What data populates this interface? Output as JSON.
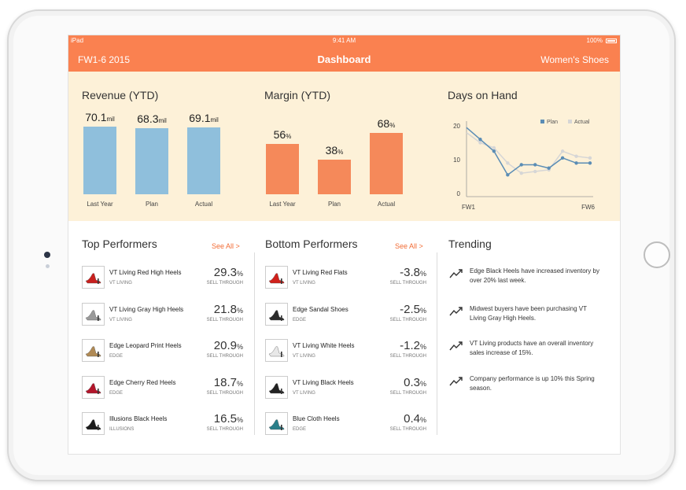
{
  "status": {
    "carrier": "iPad",
    "time": "9:41 AM",
    "battery": "100%"
  },
  "header": {
    "left": "FW1-6 2015",
    "title": "Dashboard",
    "right": "Women's Shoes"
  },
  "revenue": {
    "title": "Revenue (YTD)",
    "bars": [
      {
        "value": "70.1",
        "unit": "mil",
        "label": "Last Year",
        "amount": 70.1
      },
      {
        "value": "68.3",
        "unit": "mil",
        "label": "Plan",
        "amount": 68.3
      },
      {
        "value": "69.1",
        "unit": "mil",
        "label": "Actual",
        "amount": 69.1
      }
    ]
  },
  "margin": {
    "title": "Margin (YTD)",
    "bars": [
      {
        "value": "56",
        "unit": "%",
        "label": "Last Year",
        "amount": 56
      },
      {
        "value": "38",
        "unit": "%",
        "label": "Plan",
        "amount": 38
      },
      {
        "value": "68",
        "unit": "%",
        "label": "Actual",
        "amount": 68
      }
    ]
  },
  "days_on_hand": {
    "title": "Days on Hand",
    "legend": [
      "Plan",
      "Actual"
    ],
    "y_ticks": [
      "20",
      "10",
      "0"
    ],
    "x_start": "FW1",
    "x_end": "FW6"
  },
  "chart_data": {
    "type": "line",
    "title": "Days on Hand",
    "ylim": [
      0,
      20
    ],
    "x_tick_labels": [
      "FW1",
      "FW6"
    ],
    "x": [
      1,
      2,
      3,
      4,
      5,
      6,
      7,
      8,
      9,
      10
    ],
    "series": [
      {
        "name": "Plan",
        "values": [
          19.5,
          16,
          12.5,
          5.5,
          8.5,
          8.5,
          7.5,
          10.5,
          9,
          9
        ],
        "color": "#5b8db5"
      },
      {
        "name": "Actual",
        "values": [
          18,
          15,
          13.5,
          9,
          6,
          6.5,
          7,
          12.5,
          11,
          10.5
        ],
        "color": "#d6d6d6"
      }
    ]
  },
  "top_performers": {
    "title": "Top Performers",
    "see_all": "See All >",
    "items": [
      {
        "name": "VT Living Red High Heels",
        "brand": "VT LIVING",
        "value": "29.3",
        "unit": "%",
        "sub": "SELL THROUGH",
        "color": "#c8201e"
      },
      {
        "name": "VT Living Gray High Heels",
        "brand": "VT LIVING",
        "value": "21.8",
        "unit": "%",
        "sub": "SELL THROUGH",
        "color": "#9a9a9a"
      },
      {
        "name": "Edge Leopard Print Heels",
        "brand": "EDGE",
        "value": "20.9",
        "unit": "%",
        "sub": "SELL THROUGH",
        "color": "#b08a55"
      },
      {
        "name": "Edge Cherry Red Heels",
        "brand": "EDGE",
        "value": "18.7",
        "unit": "%",
        "sub": "SELL THROUGH",
        "color": "#b3162b"
      },
      {
        "name": "Illusions Black Heels",
        "brand": "ILLUSIONS",
        "value": "16.5",
        "unit": "%",
        "sub": "SELL THROUGH",
        "color": "#1c1c1c"
      }
    ]
  },
  "bottom_performers": {
    "title": "Bottom Performers",
    "see_all": "See All >",
    "items": [
      {
        "name": "VT Living Red Flats",
        "brand": "VT LIVING",
        "value": "-3.8",
        "unit": "%",
        "sub": "SELL THROUGH",
        "color": "#d0211b"
      },
      {
        "name": "Edge Sandal Shoes",
        "brand": "EDGE",
        "value": "-2.5",
        "unit": "%",
        "sub": "SELL THROUGH",
        "color": "#2b2b2b"
      },
      {
        "name": "VT Living White Heels",
        "brand": "VT LIVING",
        "value": "-1.2",
        "unit": "%",
        "sub": "SELL THROUGH",
        "color": "#e8e8e8"
      },
      {
        "name": "VT Living Black Heels",
        "brand": "VT LIVING",
        "value": "0.3",
        "unit": "%",
        "sub": "SELL THROUGH",
        "color": "#222222"
      },
      {
        "name": "Blue Cloth Heels",
        "brand": "EDGE",
        "value": "0.4",
        "unit": "%",
        "sub": "SELL THROUGH",
        "color": "#2a7f8a"
      }
    ]
  },
  "trending": {
    "title": "Trending",
    "items": [
      {
        "text": "Edge Black Heels have increased inventory by over 20% last week."
      },
      {
        "text": "Midwest buyers have been purchasing VT Living Gray High Heels."
      },
      {
        "text": "VT Living products have an overall inventory sales increase of 15%."
      },
      {
        "text": "Company performance is up 10% this Spring season."
      }
    ]
  },
  "colors": {
    "accent": "#fa8150",
    "panel": "#fdf1d8",
    "revenue_bar": "#8fbfdc",
    "margin_bar": "#f5895a",
    "link": "#f26c35"
  }
}
